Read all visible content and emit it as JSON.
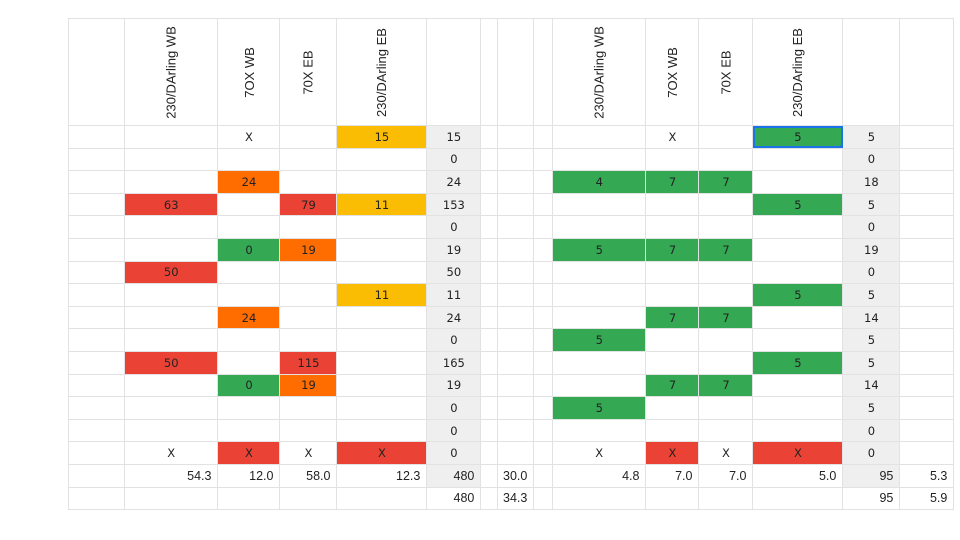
{
  "colors": {
    "red": "#ea4335",
    "orange": "#ff6d01",
    "yellow": "#fbbc04",
    "green": "#34a853",
    "sum_bg": "#efefef",
    "selection": "#1a73e8"
  },
  "left_sheet": {
    "headers": [
      "",
      "230/DArling WB",
      "7OX WB",
      "70X EB",
      "230/DArling EB",
      "",
      ""
    ],
    "rows": [
      {
        "cells": [
          "",
          "",
          "X",
          "",
          "15"
        ],
        "colors": [
          "",
          "",
          "",
          "",
          "yellow"
        ],
        "sum": "15"
      },
      {
        "cells": [
          "",
          "",
          "",
          "",
          ""
        ],
        "colors": [
          "",
          "",
          "",
          "",
          ""
        ],
        "sum": "0"
      },
      {
        "cells": [
          "",
          "",
          "24",
          "",
          ""
        ],
        "colors": [
          "",
          "",
          "orange",
          "",
          ""
        ],
        "sum": "24"
      },
      {
        "cells": [
          "",
          "63",
          "",
          "79",
          "11"
        ],
        "colors": [
          "",
          "red",
          "",
          "red",
          "yellow"
        ],
        "sum": "153"
      },
      {
        "cells": [
          "",
          "",
          "",
          "",
          ""
        ],
        "colors": [
          "",
          "",
          "",
          "",
          ""
        ],
        "sum": "0"
      },
      {
        "cells": [
          "",
          "",
          "0",
          "19",
          ""
        ],
        "colors": [
          "",
          "",
          "green",
          "orange",
          ""
        ],
        "sum": "19"
      },
      {
        "cells": [
          "",
          "50",
          "",
          "",
          ""
        ],
        "colors": [
          "",
          "red",
          "",
          "",
          ""
        ],
        "sum": "50"
      },
      {
        "cells": [
          "",
          "",
          "",
          "",
          "11"
        ],
        "colors": [
          "",
          "",
          "",
          "",
          "yellow"
        ],
        "sum": "11"
      },
      {
        "cells": [
          "",
          "",
          "24",
          "",
          ""
        ],
        "colors": [
          "",
          "",
          "orange",
          "",
          ""
        ],
        "sum": "24"
      },
      {
        "cells": [
          "",
          "",
          "",
          "",
          ""
        ],
        "colors": [
          "",
          "",
          "",
          "",
          ""
        ],
        "sum": "0"
      },
      {
        "cells": [
          "",
          "50",
          "",
          "115",
          ""
        ],
        "colors": [
          "",
          "red",
          "",
          "red",
          ""
        ],
        "sum": "165"
      },
      {
        "cells": [
          "",
          "",
          "0",
          "19",
          ""
        ],
        "colors": [
          "",
          "",
          "green",
          "orange",
          ""
        ],
        "sum": "19"
      },
      {
        "cells": [
          "",
          "",
          "",
          "",
          ""
        ],
        "colors": [
          "",
          "",
          "",
          "",
          ""
        ],
        "sum": "0"
      },
      {
        "cells": [
          "",
          "",
          "",
          "",
          ""
        ],
        "colors": [
          "",
          "",
          "",
          "",
          ""
        ],
        "sum": "0"
      },
      {
        "cells": [
          "",
          "X",
          "X",
          "X",
          "X"
        ],
        "colors": [
          "",
          "",
          "red",
          "",
          "red"
        ],
        "sum": "0"
      }
    ],
    "averages": [
      "",
      "54.3",
      "12.0",
      "58.0",
      "12.3",
      "480",
      "30.0"
    ],
    "totals": [
      "",
      "",
      "",
      "",
      "",
      "480",
      "34.3"
    ]
  },
  "right_sheet": {
    "headers": [
      "",
      "230/DArling WB",
      "7OX WB",
      "70X EB",
      "230/DArling EB",
      "",
      ""
    ],
    "rows": [
      {
        "cells": [
          "",
          "",
          "X",
          "",
          "5"
        ],
        "colors": [
          "",
          "",
          "",
          "",
          "green"
        ],
        "sum": "5",
        "selected": 4
      },
      {
        "cells": [
          "",
          "",
          "",
          "",
          ""
        ],
        "colors": [
          "",
          "",
          "",
          "",
          ""
        ],
        "sum": "0"
      },
      {
        "cells": [
          "",
          "4",
          "7",
          "7",
          ""
        ],
        "colors": [
          "",
          "green",
          "green",
          "green",
          ""
        ],
        "sum": "18"
      },
      {
        "cells": [
          "",
          "",
          "",
          "",
          "5"
        ],
        "colors": [
          "",
          "",
          "",
          "",
          "green"
        ],
        "sum": "5"
      },
      {
        "cells": [
          "",
          "",
          "",
          "",
          ""
        ],
        "colors": [
          "",
          "",
          "",
          "",
          ""
        ],
        "sum": "0"
      },
      {
        "cells": [
          "",
          "5",
          "7",
          "7",
          ""
        ],
        "colors": [
          "",
          "green",
          "green",
          "green",
          ""
        ],
        "sum": "19"
      },
      {
        "cells": [
          "",
          "",
          "",
          "",
          ""
        ],
        "colors": [
          "",
          "",
          "",
          "",
          ""
        ],
        "sum": "0"
      },
      {
        "cells": [
          "",
          "",
          "",
          "",
          "5"
        ],
        "colors": [
          "",
          "",
          "",
          "",
          "green"
        ],
        "sum": "5"
      },
      {
        "cells": [
          "",
          "",
          "7",
          "7",
          ""
        ],
        "colors": [
          "",
          "",
          "green",
          "green",
          ""
        ],
        "sum": "14"
      },
      {
        "cells": [
          "",
          "5",
          "",
          "",
          ""
        ],
        "colors": [
          "",
          "green",
          "",
          "",
          ""
        ],
        "sum": "5"
      },
      {
        "cells": [
          "",
          "",
          "",
          "",
          "5"
        ],
        "colors": [
          "",
          "",
          "",
          "",
          "green"
        ],
        "sum": "5"
      },
      {
        "cells": [
          "",
          "",
          "7",
          "7",
          ""
        ],
        "colors": [
          "",
          "",
          "green",
          "green",
          ""
        ],
        "sum": "14"
      },
      {
        "cells": [
          "",
          "5",
          "",
          "",
          ""
        ],
        "colors": [
          "",
          "green",
          "",
          "",
          ""
        ],
        "sum": "5"
      },
      {
        "cells": [
          "",
          "",
          "",
          "",
          ""
        ],
        "colors": [
          "",
          "",
          "",
          "",
          ""
        ],
        "sum": "0"
      },
      {
        "cells": [
          "",
          "X",
          "X",
          "X",
          "X"
        ],
        "colors": [
          "",
          "",
          "red",
          "",
          "red"
        ],
        "sum": "0"
      }
    ],
    "averages": [
      "",
      "4.8",
      "7.0",
      "7.0",
      "5.0",
      "95",
      "5.3"
    ],
    "totals": [
      "",
      "",
      "",
      "",
      "",
      "95",
      "5.9"
    ]
  }
}
